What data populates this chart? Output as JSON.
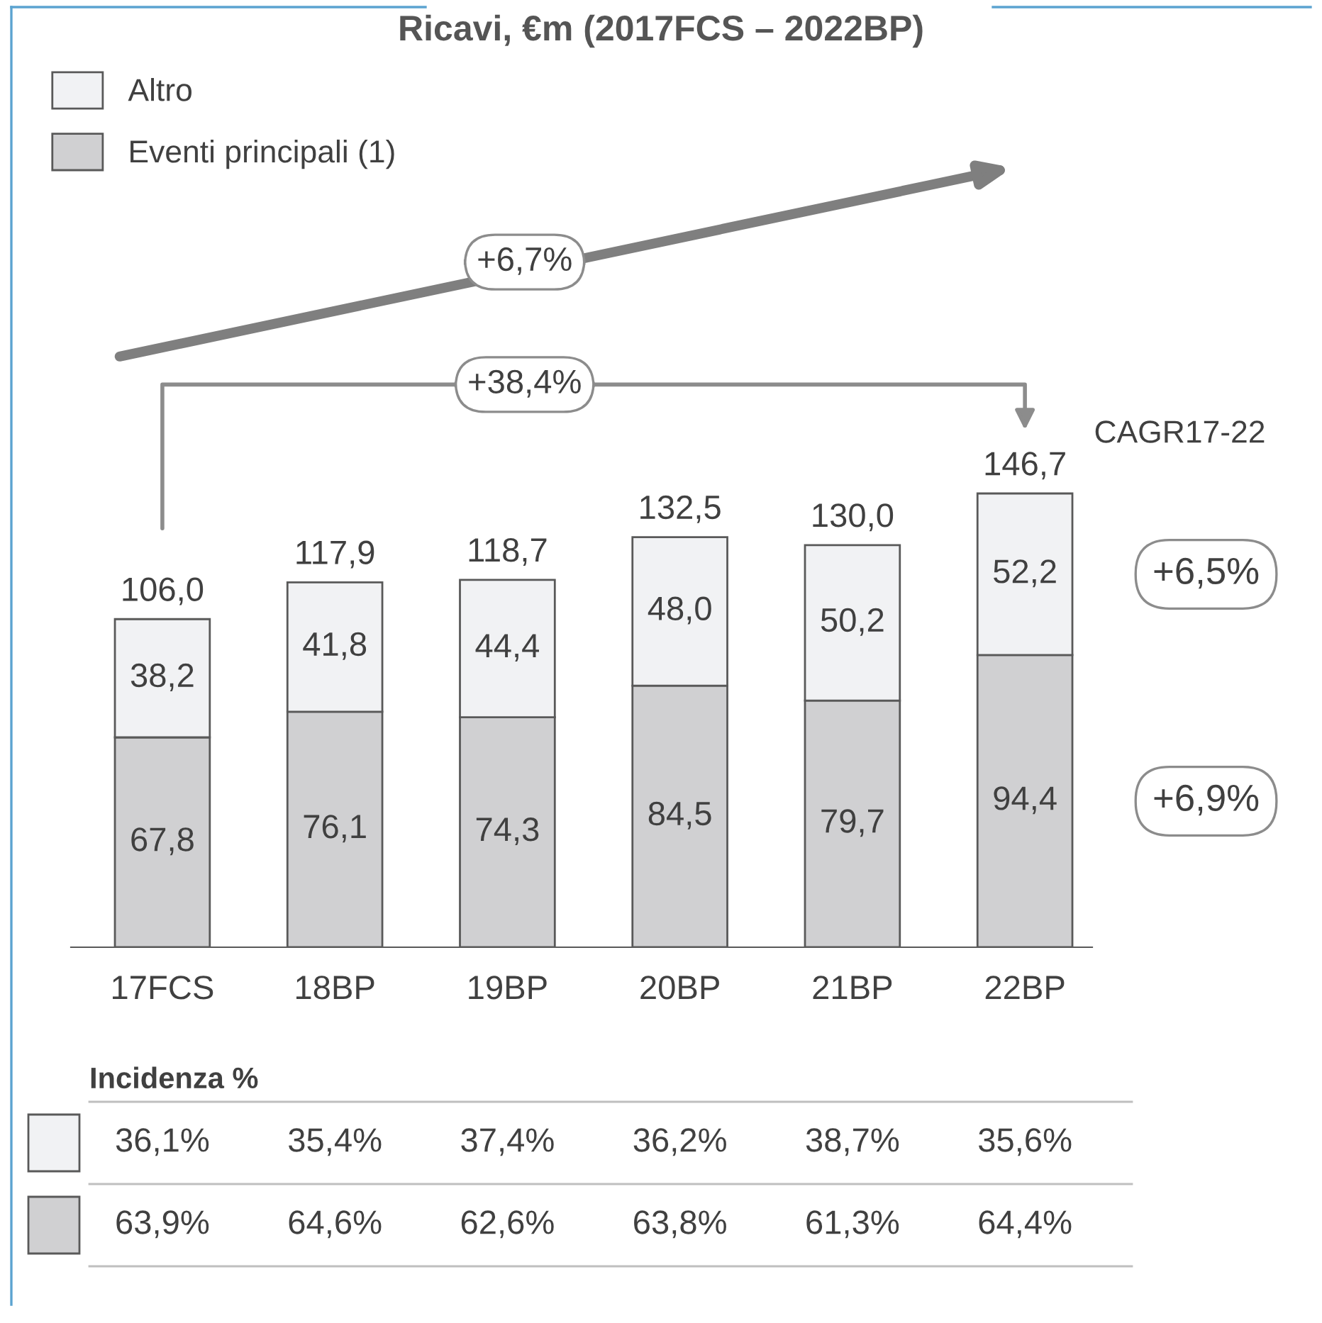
{
  "chart_data": {
    "type": "bar",
    "title": "Ricavi, €m (2017FCS – 2022BP)",
    "categories": [
      "17FCS",
      "18BP",
      "19BP",
      "20BP",
      "21BP",
      "22BP"
    ],
    "stacked": true,
    "legend": "top left",
    "grid": false,
    "series": [
      {
        "name": "Eventi principali (1)",
        "color": "#d0d0d2",
        "values": [
          67.8,
          76.1,
          74.3,
          84.5,
          79.7,
          94.4
        ],
        "value_labels": [
          "67,8",
          "76,1",
          "74,3",
          "84,5",
          "79,7",
          "94,4"
        ]
      },
      {
        "name": "Altro",
        "color": "#f1f2f4",
        "values": [
          38.2,
          41.8,
          44.4,
          48.0,
          50.2,
          52.2
        ],
        "value_labels": [
          "38,2",
          "41,8",
          "44,4",
          "48,0",
          "50,2",
          "52,2"
        ]
      }
    ],
    "totals": [
      "106,0",
      "117,9",
      "118,7",
      "132,5",
      "130,0",
      "146,7"
    ],
    "annotations": [
      "+6,7%",
      "+38,4%",
      "CAGR17-22",
      "+6,5%",
      "+6,9%",
      "Incidenza %",
      "36,1%",
      "35,4%",
      "37,4%",
      "36,2%",
      "38,7%",
      "35,6%",
      "63,9%",
      "64,6%",
      "62,6%",
      "63,8%",
      "61,3%",
      "64,4%"
    ]
  }
}
